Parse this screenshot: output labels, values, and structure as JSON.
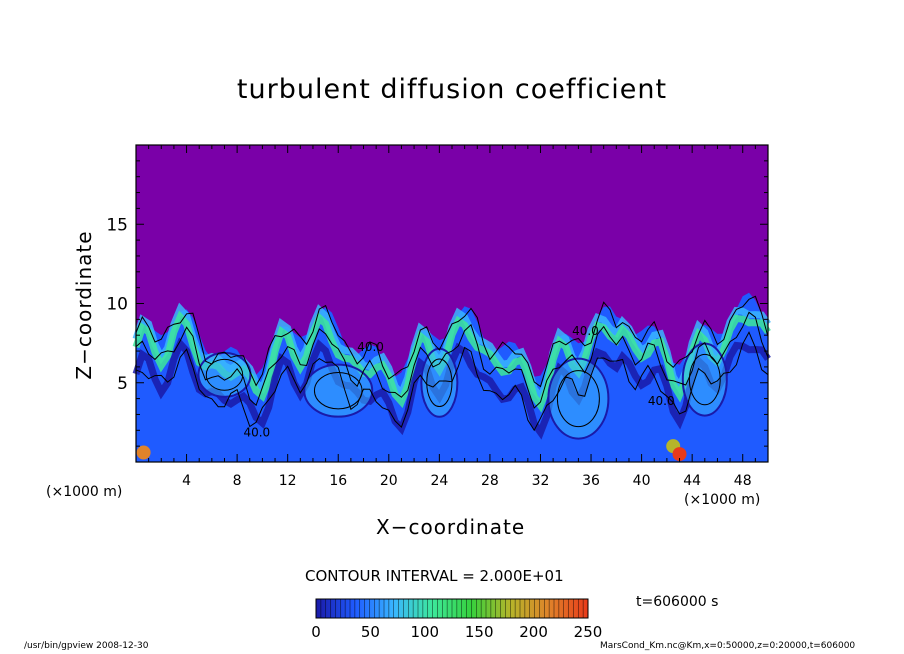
{
  "chart_data": {
    "type": "heatmap",
    "title": "turbulent diffusion coefficient",
    "xlabel": "X−coordinate",
    "ylabel": "Z−coordinate",
    "x_unit_label": "(×1000 m)",
    "xlim": [
      0,
      50
    ],
    "ylim": [
      0,
      20
    ],
    "x_ticks": [
      4,
      8,
      12,
      16,
      20,
      24,
      28,
      32,
      36,
      40,
      44,
      48
    ],
    "y_ticks": [
      5,
      10,
      15
    ],
    "colorbar": {
      "range": [
        0,
        250
      ],
      "ticks": [
        0,
        50,
        100,
        150,
        200,
        250
      ],
      "colors": [
        "#7a00a8",
        "#1a1aa8",
        "#1f5bff",
        "#39b6ff",
        "#3de89a",
        "#36d13d",
        "#b5b52a",
        "#e0832a",
        "#e83a1a"
      ]
    },
    "contour_interval_text": "CONTOUR INTERVAL = 2.000E+01",
    "contour_labels": [
      "40.0",
      "40.0",
      "40.0",
      "40.0"
    ],
    "time_label": "t=606000 s",
    "grid": false,
    "legend": "none"
  },
  "footer": {
    "left": "/usr/bin/gpview   2008-12-30",
    "right": "MarsCond_Km.nc@Km,x=0:50000,z=0:20000,t=606000"
  }
}
